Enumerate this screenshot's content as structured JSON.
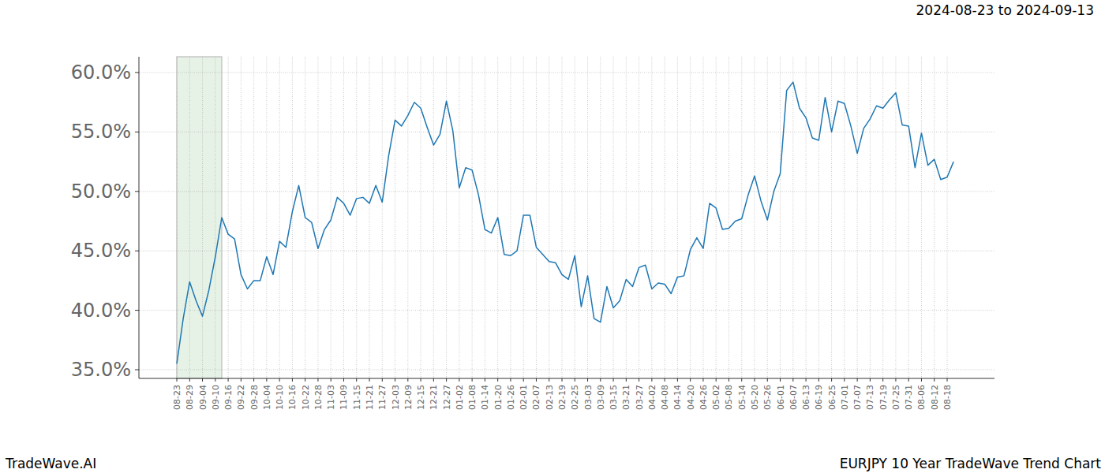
{
  "chart_data": {
    "type": "line",
    "title": "2024-08-23 to 2024-09-13",
    "source": "TradeWave.AI",
    "caption": "EURJPY 10 Year TradeWave Trend Chart",
    "categories": [
      "08-23",
      null,
      "08-29",
      null,
      "09-04",
      null,
      "09-10",
      null,
      "09-16",
      null,
      "09-22",
      null,
      "09-28",
      null,
      "10-04",
      null,
      "10-10",
      null,
      "10-16",
      null,
      "10-22",
      null,
      "10-28",
      null,
      "11-03",
      null,
      "11-09",
      null,
      "11-15",
      null,
      "11-21",
      null,
      "11-27",
      null,
      "12-03",
      null,
      "12-09",
      null,
      "12-15",
      null,
      "12-21",
      null,
      "12-27",
      null,
      "01-02",
      null,
      "01-08",
      null,
      "01-14",
      null,
      "01-20",
      null,
      "01-26",
      null,
      "02-01",
      null,
      "02-07",
      null,
      "02-13",
      null,
      "02-19",
      null,
      "02-25",
      null,
      "03-03",
      null,
      "03-09",
      null,
      "03-15",
      null,
      "03-21",
      null,
      "03-27",
      null,
      "04-02",
      null,
      "04-08",
      null,
      "04-14",
      null,
      "04-20",
      null,
      "04-26",
      null,
      "05-02",
      null,
      "05-08",
      null,
      "05-14",
      null,
      "05-20",
      null,
      "05-26",
      null,
      "06-01",
      null,
      "06-07",
      null,
      "06-13",
      null,
      "06-19",
      null,
      "06-25",
      null,
      "07-01",
      null,
      "07-07",
      null,
      "07-13",
      null,
      "07-19",
      null,
      "07-25",
      null,
      "07-31",
      null,
      "08-06",
      null,
      "08-12",
      null,
      "08-18",
      null
    ],
    "values": [
      35.5,
      39.3,
      42.4,
      40.8,
      39.5,
      41.7,
      44.5,
      47.8,
      46.4,
      46.0,
      43.0,
      41.8,
      42.5,
      42.5,
      44.5,
      43.0,
      45.8,
      45.3,
      48.3,
      50.5,
      47.8,
      47.4,
      45.2,
      46.8,
      47.6,
      49.5,
      49.0,
      48.0,
      49.4,
      49.5,
      49.0,
      50.5,
      49.1,
      53.0,
      56.0,
      55.5,
      56.4,
      57.5,
      57.0,
      55.4,
      53.9,
      54.8,
      57.6,
      55.1,
      50.3,
      52.0,
      51.8,
      49.7,
      46.8,
      46.5,
      47.8,
      44.7,
      44.6,
      45.0,
      48.0,
      48.0,
      45.3,
      44.7,
      44.1,
      44.0,
      43.0,
      42.6,
      44.6,
      40.3,
      42.9,
      39.3,
      39.0,
      42.0,
      40.2,
      40.8,
      42.6,
      42.0,
      43.6,
      43.8,
      41.8,
      42.3,
      42.2,
      41.4,
      42.8,
      42.9,
      45.1,
      46.1,
      45.2,
      49.0,
      48.6,
      46.8,
      46.9,
      47.5,
      47.7,
      49.7,
      51.3,
      49.2,
      47.6,
      50.0,
      51.5,
      58.5,
      59.2,
      57.0,
      56.2,
      54.5,
      54.3,
      57.9,
      55.0,
      57.6,
      57.4,
      55.5,
      53.2,
      55.3,
      56.1,
      57.2,
      57.0,
      57.7,
      58.3,
      55.6,
      55.5,
      52.0,
      54.9,
      52.2,
      52.7,
      51.0,
      51.2,
      52.5
    ],
    "color": "#1f77b4",
    "shaded_span": [
      0,
      7
    ],
    "ylim": [
      34.27,
      61.33
    ],
    "yticks": [
      {
        "value": 35,
        "label": "35.0%"
      },
      {
        "value": 40,
        "label": "40.0%"
      },
      {
        "value": 45,
        "label": "45.0%"
      },
      {
        "value": 50,
        "label": "50.0%"
      },
      {
        "value": 55,
        "label": "55.0%"
      },
      {
        "value": 60,
        "label": "60.0%"
      }
    ],
    "grid": true
  }
}
